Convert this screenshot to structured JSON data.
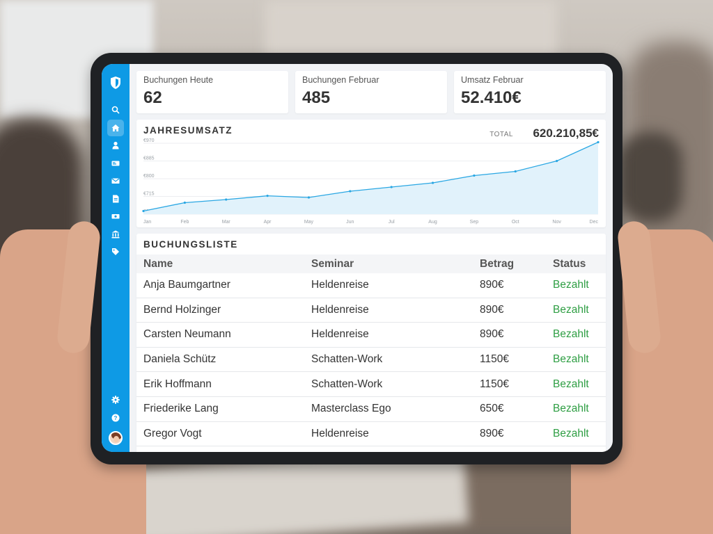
{
  "kpis": [
    {
      "label": "Buchungen Heute",
      "value": "62"
    },
    {
      "label": "Buchungen Februar",
      "value": "485"
    },
    {
      "label": "Umsatz Februar",
      "value": "52.410€"
    }
  ],
  "revenue_chart": {
    "title": "JAHRESUMSATZ",
    "total_label": "TOTAL",
    "total_value": "620.210,85€"
  },
  "chart_data": {
    "type": "area",
    "title": "JAHRESUMSATZ",
    "categories": [
      "Jan",
      "Feb",
      "Mar",
      "Apr",
      "May",
      "Jun",
      "Jul",
      "Aug",
      "Sep",
      "Oct",
      "Nov",
      "Dec"
    ],
    "series": [
      {
        "values": [
          645,
          685,
          700,
          718,
          710,
          740,
          760,
          780,
          815,
          835,
          885,
          975
        ]
      }
    ],
    "y_ticks": [
      "€970",
      "€885",
      "€800",
      "€715",
      "€630"
    ],
    "ylim": [
      630,
      970
    ],
    "grid": true,
    "color": "#2aa7e3",
    "fill_color": "#e1f2fb"
  },
  "booking_list": {
    "title": "BUCHUNGSLISTE",
    "columns": {
      "name": "Name",
      "seminar": "Seminar",
      "betrag": "Betrag",
      "status": "Status"
    },
    "rows": [
      {
        "name": "Anja Baumgartner",
        "seminar": "Heldenreise",
        "betrag": "890€",
        "status": "Bezahlt"
      },
      {
        "name": "Bernd Holzinger",
        "seminar": "Heldenreise",
        "betrag": "890€",
        "status": "Bezahlt"
      },
      {
        "name": "Carsten Neumann",
        "seminar": "Heldenreise",
        "betrag": "890€",
        "status": "Bezahlt"
      },
      {
        "name": "Daniela Schütz",
        "seminar": "Schatten-Work",
        "betrag": "1150€",
        "status": "Bezahlt"
      },
      {
        "name": "Erik Hoffmann",
        "seminar": "Schatten-Work",
        "betrag": "1150€",
        "status": "Bezahlt"
      },
      {
        "name": "Friederike Lang",
        "seminar": "Masterclass Ego",
        "betrag": "650€",
        "status": "Bezahlt"
      },
      {
        "name": "Gregor Vogt",
        "seminar": "Heldenreise",
        "betrag": "890€",
        "status": "Bezahlt"
      }
    ],
    "status_color": "#2e9e43"
  },
  "sidebar": {
    "icons": [
      "search-icon",
      "home-icon",
      "user-icon",
      "ticket-icon",
      "mail-icon",
      "invoice-icon",
      "payment-icon",
      "bank-icon",
      "tag-icon"
    ],
    "active": "home-icon",
    "bottom_icons": [
      "gear-icon",
      "help-icon"
    ],
    "accent": "#0e9ae5"
  }
}
